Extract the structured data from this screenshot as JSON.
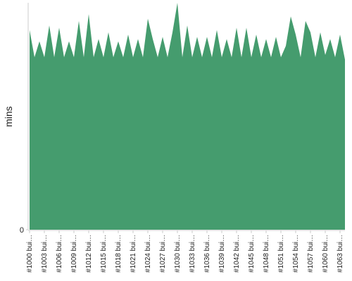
{
  "chart_data": {
    "type": "area",
    "y_label": "mins",
    "color": "#459c6e",
    "categories": [
      "#1000 bui…",
      null,
      null,
      "#1003 bui…",
      null,
      null,
      "#1006 bui…",
      null,
      null,
      "#1009 bui…",
      null,
      null,
      "#1012 bui…",
      null,
      null,
      "#1015 bui…",
      null,
      null,
      "#1018 bui…",
      null,
      null,
      "#1021 bui…",
      null,
      null,
      "#1024 bui…",
      null,
      null,
      "#1027 bui…",
      null,
      null,
      "#1030 bui…",
      null,
      null,
      "#1033 bui…",
      null,
      null,
      "#1036 bui…",
      null,
      null,
      "#1039 bui…",
      null,
      null,
      "#1042 bui…",
      null,
      null,
      "#1045 bui…",
      null,
      null,
      "#1048 bui…",
      null,
      null,
      "#1051 bui…",
      null,
      null,
      "#1054 bui…",
      null,
      null,
      "#1057 bui…",
      null,
      null,
      "#1060 bui…",
      null,
      null,
      "#1063 bui…",
      null
    ],
    "values": [
      88,
      76,
      83,
      76,
      90,
      76,
      89,
      76,
      83,
      76,
      92,
      76,
      95,
      76,
      84,
      76,
      87,
      76,
      83,
      76,
      86,
      76,
      84,
      76,
      93,
      84,
      76,
      85,
      76,
      87,
      100,
      76,
      90,
      76,
      85,
      76,
      85,
      76,
      88,
      76,
      84,
      76,
      89,
      76,
      89,
      76,
      86,
      76,
      84,
      76,
      85,
      76,
      81,
      94,
      86,
      76,
      92,
      87,
      76,
      87,
      77,
      84,
      76,
      86,
      75
    ],
    "ylim": [
      0,
      100
    ],
    "yticks": [
      0
    ]
  }
}
